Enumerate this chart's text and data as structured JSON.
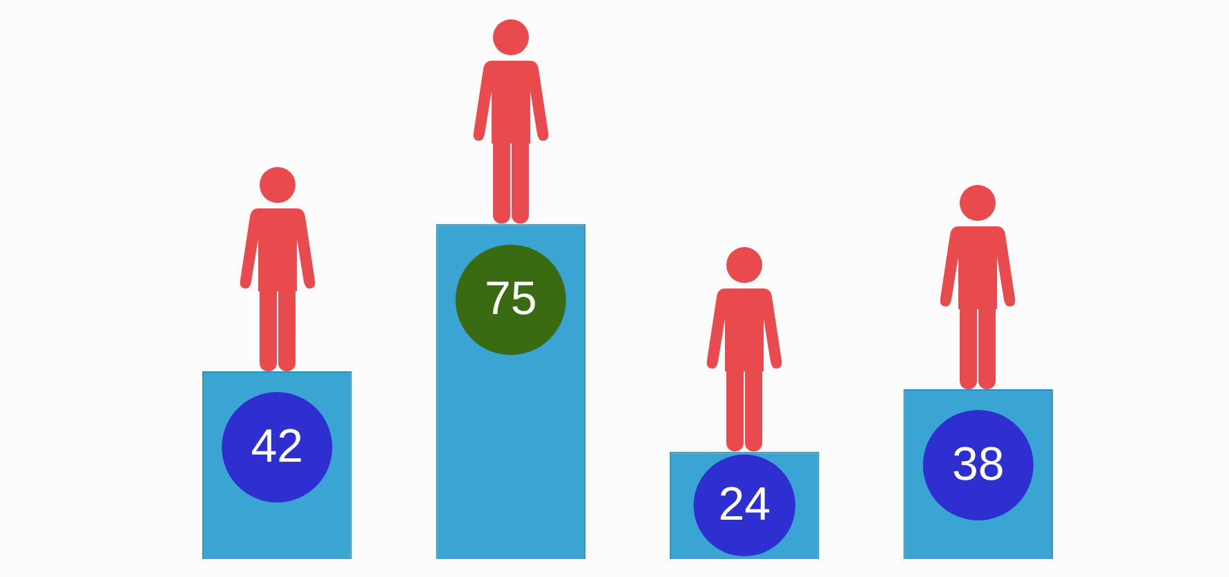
{
  "chart_data": {
    "type": "bar",
    "categories": [
      null,
      null,
      null,
      null
    ],
    "values": [
      42,
      75,
      24,
      38
    ],
    "color": "#3aa5d2",
    "data_labels": true
  }
}
